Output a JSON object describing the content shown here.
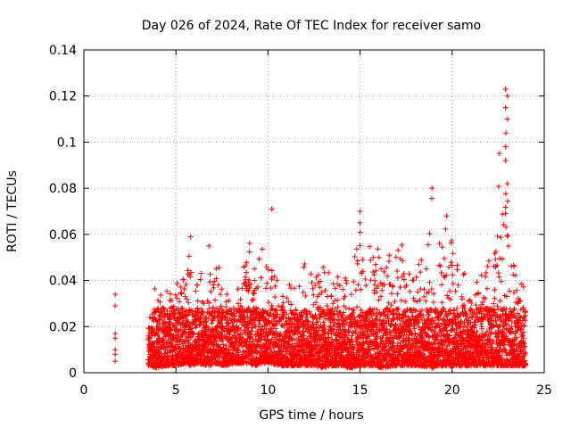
{
  "chart_data": {
    "type": "scatter",
    "title": "Day 026 of 2024, Rate Of TEC Index for receiver samo",
    "xlabel": "GPS time / hours",
    "ylabel": "ROTI / TECUs",
    "xlim": [
      0,
      25
    ],
    "ylim": [
      0,
      0.14
    ],
    "grid": true,
    "xticks": [
      0,
      5,
      10,
      15,
      20,
      25
    ],
    "xtick_labels": [
      "0",
      "5",
      "10",
      "15",
      "20",
      "25"
    ],
    "yticks": [
      0,
      0.02,
      0.04,
      0.06,
      0.08,
      0.1,
      0.12,
      0.14
    ],
    "ytick_labels": [
      "0",
      "0.02",
      "0.04",
      "0.06",
      "0.08",
      "0.1",
      "0.12",
      "0.14"
    ],
    "marker": "plus",
    "color": "#ff0000",
    "series": [
      {
        "name": "ROTI",
        "envelope": {
          "x": [
            1.7,
            3.5,
            4.0,
            4.5,
            5.0,
            5.5,
            5.8,
            6.2,
            6.8,
            7.2,
            7.6,
            8.2,
            8.6,
            9.0,
            9.3,
            9.7,
            10.0,
            10.2,
            10.6,
            11.0,
            11.5,
            12.0,
            12.5,
            13.0,
            13.5,
            14.0,
            14.5,
            14.9,
            15.3,
            15.8,
            16.2,
            16.8,
            17.2,
            17.8,
            18.3,
            18.9,
            19.2,
            19.7,
            20.2,
            20.8,
            21.3,
            21.8,
            22.3,
            22.7,
            22.9,
            23.0,
            23.2,
            23.6,
            24.0
          ],
          "peak": [
            0.034,
            0.02,
            0.045,
            0.036,
            0.04,
            0.05,
            0.06,
            0.04,
            0.056,
            0.058,
            0.034,
            0.037,
            0.05,
            0.061,
            0.045,
            0.071,
            0.058,
            0.047,
            0.04,
            0.037,
            0.043,
            0.048,
            0.042,
            0.05,
            0.044,
            0.044,
            0.046,
            0.07,
            0.052,
            0.061,
            0.05,
            0.052,
            0.059,
            0.044,
            0.05,
            0.08,
            0.058,
            0.068,
            0.048,
            0.044,
            0.04,
            0.045,
            0.058,
            0.123,
            0.115,
            0.082,
            0.056,
            0.042,
            0.036
          ],
          "base": [
            0.005,
            0.003,
            0.002,
            0.003,
            0.003,
            0.004,
            0.003,
            0.004,
            0.003,
            0.004,
            0.003,
            0.004,
            0.004,
            0.004,
            0.003,
            0.004,
            0.004,
            0.004,
            0.003,
            0.003,
            0.003,
            0.003,
            0.003,
            0.002,
            0.003,
            0.003,
            0.002,
            0.003,
            0.003,
            0.003,
            0.002,
            0.003,
            0.003,
            0.003,
            0.003,
            0.002,
            0.003,
            0.003,
            0.003,
            0.003,
            0.003,
            0.003,
            0.003,
            0.003,
            0.003,
            0.003,
            0.003,
            0.003,
            0.003
          ]
        },
        "notable_points": [
          {
            "x": 1.7,
            "y": 0.034
          },
          {
            "x": 1.7,
            "y": 0.029
          },
          {
            "x": 1.7,
            "y": 0.017
          },
          {
            "x": 1.7,
            "y": 0.015
          },
          {
            "x": 1.7,
            "y": 0.01
          },
          {
            "x": 1.7,
            "y": 0.008
          },
          {
            "x": 1.7,
            "y": 0.005
          },
          {
            "x": 5.8,
            "y": 0.059
          },
          {
            "x": 10.2,
            "y": 0.071
          },
          {
            "x": 15.0,
            "y": 0.07
          },
          {
            "x": 18.9,
            "y": 0.08
          },
          {
            "x": 19.7,
            "y": 0.068
          },
          {
            "x": 22.9,
            "y": 0.123
          },
          {
            "x": 23.0,
            "y": 0.12
          },
          {
            "x": 22.9,
            "y": 0.115
          },
          {
            "x": 23.0,
            "y": 0.11
          },
          {
            "x": 22.9,
            "y": 0.098
          },
          {
            "x": 22.9,
            "y": 0.092
          },
          {
            "x": 23.0,
            "y": 0.082
          },
          {
            "x": 22.9,
            "y": 0.069
          }
        ]
      }
    ]
  }
}
